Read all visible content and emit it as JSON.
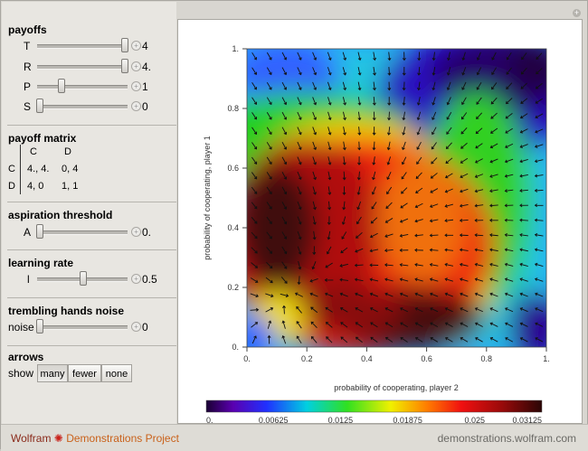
{
  "payoffs": {
    "title": "payoffs",
    "sliders": [
      {
        "label": "T",
        "value": "4"
      },
      {
        "label": "R",
        "value": "4."
      },
      {
        "label": "P",
        "value": "1"
      },
      {
        "label": "S",
        "value": "0"
      }
    ]
  },
  "payoff_matrix": {
    "title": "payoff matrix",
    "col_headers": [
      "C",
      "D"
    ],
    "rows": [
      {
        "label": "C",
        "cells": [
          "4., 4.",
          "0, 4"
        ]
      },
      {
        "label": "D",
        "cells": [
          "4, 0",
          "1, 1"
        ]
      }
    ]
  },
  "aspiration": {
    "title": "aspiration threshold",
    "label": "A",
    "value": "0."
  },
  "learning": {
    "title": "learning rate",
    "label": "l",
    "value": "0.5"
  },
  "noise": {
    "title": "trembling hands noise",
    "label": "noise",
    "value": "0"
  },
  "arrows": {
    "title": "arrows",
    "label": "show",
    "options": [
      "many",
      "fewer",
      "none"
    ],
    "selected": "many"
  },
  "plot": {
    "xlabel": "probability of cooperating, player 2",
    "ylabel": "probability of cooperating, player 1",
    "x_ticks": [
      "0.",
      "0.2",
      "0.4",
      "0.6",
      "0.8",
      "1."
    ],
    "y_ticks": [
      "0.",
      "0.2",
      "0.4",
      "0.6",
      "0.8",
      "1."
    ],
    "colorbar_ticks": [
      "0.",
      "0.00625",
      "0.0125",
      "0.01875",
      "0.025",
      "0.03125"
    ]
  },
  "footer": {
    "brand": "Wolfram",
    "project": "Demonstrations Project",
    "domain": "demonstrations.wolfram.com"
  }
}
